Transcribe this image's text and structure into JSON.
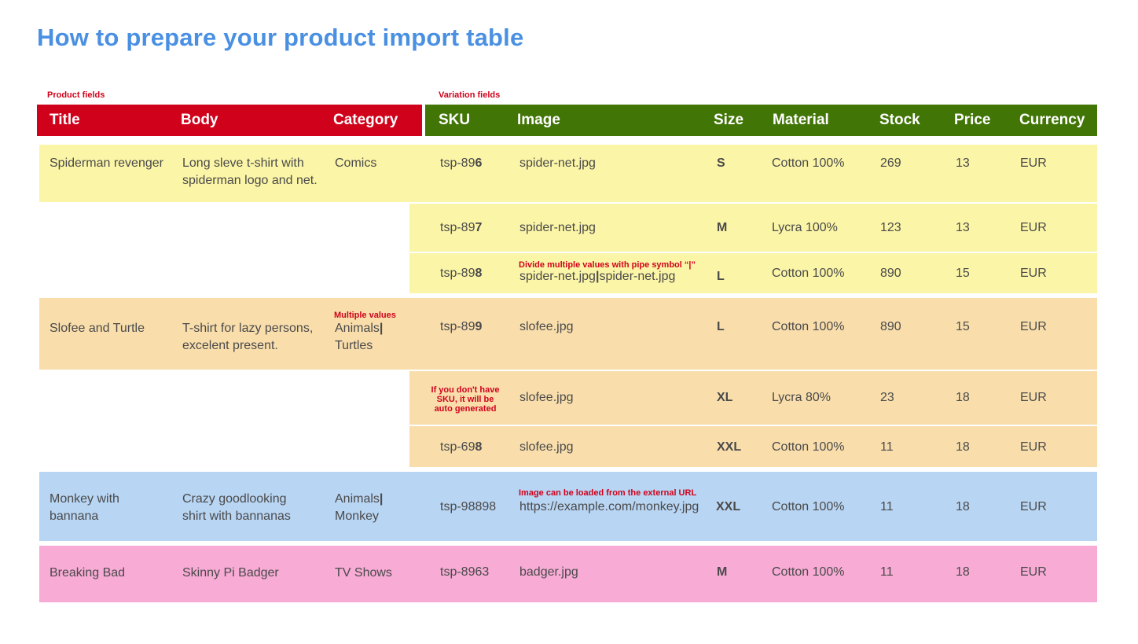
{
  "title": "How to prepare your product import table",
  "labels": {
    "product_fields": "Product fields",
    "variation_fields": "Variation fields"
  },
  "headers": {
    "title": "Title",
    "body": "Body",
    "category": "Category",
    "sku": "SKU",
    "image": "Image",
    "size": "Size",
    "material": "Material",
    "stock": "Stock",
    "price": "Price",
    "currency": "Currency"
  },
  "products": [
    {
      "title": "Spiderman revenger",
      "body1": "Long sleve t-shirt with",
      "body2": "spiderman logo and net.",
      "category": "Comics"
    },
    {
      "title": "Slofee and Turtle",
      "body1": "T-shirt for lazy persons,",
      "body2": "excelent present.",
      "cat1": "Animals",
      "cat2": "Turtles",
      "pipe": "|"
    },
    {
      "title1": "Monkey with",
      "title2": "bannana",
      "body1": "Crazy goodlooking",
      "body2": "shirt with bannanas",
      "cat1": "Animals",
      "cat2": "Monkey",
      "pipe": "|"
    },
    {
      "title": "Breaking Bad",
      "body": "Skinny Pi Badger",
      "category": "TV Shows"
    }
  ],
  "variations": [
    {
      "sku_pre": "tsp-89",
      "sku_tail": "6",
      "image": "spider-net.jpg",
      "size": "S",
      "material": "Cotton 100%",
      "stock": "269",
      "price": "13",
      "currency": "EUR"
    },
    {
      "sku_pre": "tsp-89",
      "sku_tail": "7",
      "image": "spider-net.jpg",
      "size": "M",
      "material": "Lycra 100%",
      "stock": "123",
      "price": "13",
      "currency": "EUR"
    },
    {
      "sku_pre": "tsp-89",
      "sku_tail": "8",
      "image_a": "spider-net.jpg",
      "image_pipe": "|",
      "image_b": "spider-net.jpg",
      "size": "L",
      "material": "Cotton 100%",
      "stock": "890",
      "price": "15",
      "currency": "EUR"
    },
    {
      "sku_pre": "tsp-89",
      "sku_tail": "9",
      "image": "slofee.jpg",
      "size": "L",
      "material": "Cotton 100%",
      "stock": "890",
      "price": "15",
      "currency": "EUR"
    },
    {
      "image": "slofee.jpg",
      "size": "XL",
      "material": "Lycra 80%",
      "stock": "23",
      "price": "18",
      "currency": "EUR"
    },
    {
      "sku_pre": "tsp-69",
      "sku_tail": "8",
      "image": "slofee.jpg",
      "size": "XXL",
      "material": "Cotton 100%",
      "stock": "11",
      "price": "18",
      "currency": "EUR"
    },
    {
      "sku": "tsp-98898",
      "image": "https://example.com/monkey.jpg",
      "size": "XXL",
      "material": "Cotton 100%",
      "stock": "11",
      "price": "18",
      "currency": "EUR"
    },
    {
      "sku": "tsp-8963",
      "image": "badger.jpg",
      "size": "M",
      "material": "Cotton 100%",
      "stock": "11",
      "price": "18",
      "currency": "EUR"
    }
  ],
  "notes": {
    "pipe_note": "Divide multiple values with pipe symbol “|”",
    "multiple_values": "Multiple values",
    "sku_note_1": "If you don't have",
    "sku_note_2": "SKU, it will be",
    "sku_note_3": "auto generated",
    "url_note": "Image can be loaded from the external URL"
  },
  "colors": {
    "title": "#4a90e2",
    "product_header": "#d0021b",
    "variation_header": "#417505",
    "yellow": "#fbf5a7",
    "orange": "#f9deac",
    "blue": "#b8d5f3",
    "pink": "#f7abd5",
    "note": "#d0021b"
  }
}
